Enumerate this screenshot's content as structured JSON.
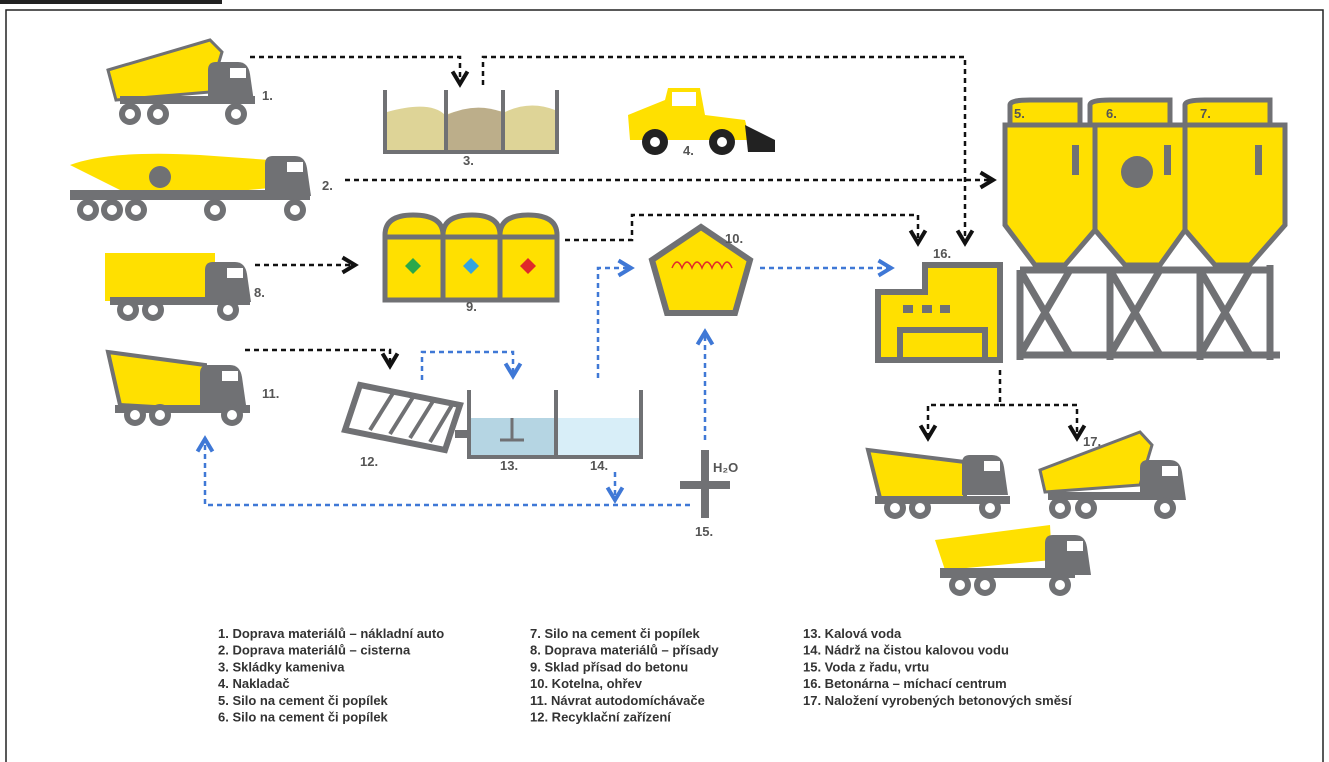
{
  "nodes": [
    {
      "label": "1."
    },
    {
      "label": "2."
    },
    {
      "label": "3."
    },
    {
      "label": "4."
    },
    {
      "label": "5."
    },
    {
      "label": "6."
    },
    {
      "label": "7."
    },
    {
      "label": "8."
    },
    {
      "label": "9."
    },
    {
      "label": "10."
    },
    {
      "label": "11."
    },
    {
      "label": "12."
    },
    {
      "label": "13."
    },
    {
      "label": "14."
    },
    {
      "label": "15."
    },
    {
      "label": "16."
    },
    {
      "label": "17."
    }
  ],
  "water_label": "H₂O",
  "legend": [
    "1. Doprava materiálů – nákladní auto",
    "2. Doprava materiálů – cisterna",
    "3. Skládky kameniva",
    "4. Nakladač",
    "5. Silo na cement či popílek",
    "6. Silo na cement či popílek",
    "7. Silo na cement či popílek",
    "8. Doprava materiálů – přísady",
    "9. Sklad přísad do betonu",
    "10. Kotelna, ohřev",
    "11. Návrat autodomíchávače",
    "12. Recyklační zařízení",
    "13. Kalová voda",
    "14. Nádrž na čistou kalovou vodu",
    "15. Voda z řadu, vrtu",
    "16. Betonárna – míchací centrum",
    "17. Naložení vyrobených betonových směsí"
  ]
}
